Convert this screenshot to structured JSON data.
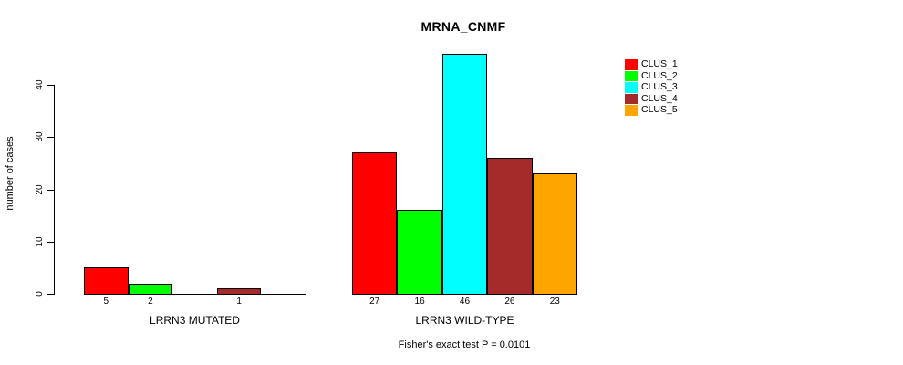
{
  "title": "MRNA_CNMF",
  "ylabel": "number of cases",
  "footer": "Fisher's exact test P = 0.0101",
  "colors": {
    "foreground": "#000000",
    "background": "#ffffff"
  },
  "legend": {
    "items": [
      {
        "label": "CLUS_1",
        "color": "#FF0000"
      },
      {
        "label": "CLUS_2",
        "color": "#00FF00"
      },
      {
        "label": "CLUS_3",
        "color": "#00FFFF"
      },
      {
        "label": "CLUS_4",
        "color": "#A52A2A"
      },
      {
        "label": "CLUS_5",
        "color": "#FFA500"
      }
    ]
  },
  "chart_data": {
    "type": "bar",
    "title": "MRNA_CNMF",
    "xlabel": "",
    "ylabel": "number of cases",
    "series_names": [
      "CLUS_1",
      "CLUS_2",
      "CLUS_3",
      "CLUS_4",
      "CLUS_5"
    ],
    "series_colors": [
      "#FF0000",
      "#00FF00",
      "#00FFFF",
      "#A52A2A",
      "#FFA500"
    ],
    "groups": [
      {
        "label": "LRRN3 MUTATED",
        "values": [
          5,
          2,
          0,
          1,
          0
        ]
      },
      {
        "label": "LRRN3 WILD-TYPE",
        "values": [
          27,
          16,
          46,
          26,
          23
        ]
      }
    ],
    "bar_value_labels": "value shown under each bar, zeros omitted",
    "yticks": [
      0,
      10,
      20,
      30,
      40
    ],
    "ylim": [
      0,
      46.4
    ],
    "grid": false,
    "legend_position": "right",
    "annotation": "Fisher's exact test P = 0.0101"
  }
}
